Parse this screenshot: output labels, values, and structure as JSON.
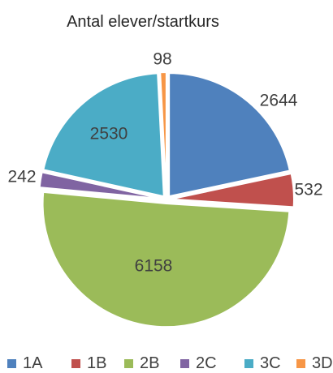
{
  "chart_data": {
    "type": "pie",
    "title": "Antal elever/startkurs",
    "categories": [
      "1A",
      "1B",
      "2B",
      "2C",
      "3C",
      "3D"
    ],
    "values": [
      2644,
      532,
      6158,
      242,
      2530,
      98
    ],
    "colors": [
      "#4f81bd",
      "#c0504d",
      "#9bbb59",
      "#8064a2",
      "#4bacc6",
      "#f79646"
    ],
    "exploded": true,
    "legend_position": "bottom"
  }
}
